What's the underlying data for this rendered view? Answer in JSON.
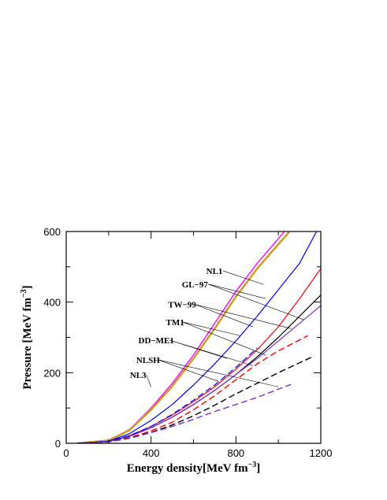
{
  "chart_data": {
    "type": "line",
    "title": "",
    "xlabel": "Energy density[MeV fm",
    "ylabel": "Pressure [MeV fm",
    "unit_superscript": "−3",
    "unit_close": "]",
    "xlim": [
      0,
      1200
    ],
    "ylim": [
      0,
      600
    ],
    "xticks": [
      0,
      400,
      800,
      1200
    ],
    "yticks": [
      0,
      200,
      400,
      600
    ],
    "minor_step": 200,
    "grid": false,
    "legend": "none",
    "series": [
      {
        "name": "NL1",
        "color": "#ff00ff",
        "width": 1.4,
        "dash": false,
        "x": [
          50,
          200,
          300,
          400,
          500,
          600,
          700,
          800,
          900,
          1050
        ],
        "y": [
          0,
          8,
          40,
          100,
          170,
          250,
          340,
          430,
          510,
          615
        ]
      },
      {
        "name": "GL-97",
        "color": "#c8a020",
        "width": 2.5,
        "dash": false,
        "x": [
          50,
          200,
          300,
          400,
          500,
          600,
          700,
          800,
          900,
          1060
        ],
        "y": [
          0,
          8,
          38,
          95,
          162,
          240,
          325,
          415,
          495,
          605
        ]
      },
      {
        "name": "TW-99",
        "color": "#0000ff",
        "width": 1.2,
        "dash": false,
        "x": [
          50,
          200,
          300,
          400,
          500,
          600,
          700,
          800,
          900,
          1000,
          1100,
          1180
        ],
        "y": [
          0,
          6,
          28,
          65,
          110,
          165,
          225,
          290,
          360,
          435,
          510,
          600
        ]
      },
      {
        "name": "TM1",
        "color": "#ff0000",
        "width": 1.2,
        "dash": false,
        "x": [
          50,
          200,
          300,
          400,
          500,
          600,
          700,
          800,
          900,
          1000,
          1100,
          1200
        ],
        "y": [
          0,
          5,
          22,
          48,
          80,
          118,
          160,
          210,
          265,
          330,
          410,
          495
        ]
      },
      {
        "name": "DD-ME1",
        "color": "#000000",
        "width": 1.2,
        "dash": false,
        "x": [
          50,
          200,
          300,
          400,
          500,
          600,
          700,
          800,
          900,
          1000,
          1100,
          1200
        ],
        "y": [
          0,
          5,
          20,
          44,
          74,
          110,
          150,
          195,
          245,
          300,
          360,
          420
        ]
      },
      {
        "name": "NLSH",
        "color": "#7b30d8",
        "width": 1.2,
        "dash": false,
        "x": [
          50,
          200,
          300,
          400,
          500,
          600,
          700,
          800,
          900,
          1000,
          1100,
          1200
        ],
        "y": [
          0,
          5,
          20,
          44,
          74,
          110,
          150,
          195,
          240,
          290,
          340,
          390
        ]
      },
      {
        "name": "",
        "color": "#0000ff",
        "width": 1.2,
        "dash": true,
        "x": [
          50,
          200,
          300,
          400,
          500,
          600,
          700,
          800,
          900
        ],
        "y": [
          0,
          6,
          22,
          48,
          82,
          122,
          165,
          215,
          270
        ]
      },
      {
        "name": "",
        "color": "#ff0000",
        "width": 1.4,
        "dash": true,
        "x": [
          50,
          200,
          300,
          400,
          500,
          600,
          700,
          800,
          900,
          1000,
          1140
        ],
        "y": [
          0,
          4,
          16,
          35,
          60,
          95,
          135,
          180,
          225,
          262,
          305
        ]
      },
      {
        "name": "",
        "color": "#000000",
        "width": 1.4,
        "dash": true,
        "x": [
          50,
          200,
          300,
          400,
          500,
          600,
          700,
          800,
          900,
          1000,
          1160
        ],
        "y": [
          0,
          4,
          15,
          31,
          52,
          78,
          108,
          140,
          170,
          200,
          245
        ]
      },
      {
        "name": "",
        "color": "#7b30d8",
        "width": 1.4,
        "dash": true,
        "x": [
          50,
          200,
          300,
          400,
          500,
          600,
          700,
          800,
          900,
          1060
        ],
        "y": [
          0,
          4,
          14,
          30,
          48,
          68,
          90,
          110,
          130,
          167
        ]
      }
    ],
    "annotations": [
      {
        "text": "NL1",
        "x": 660,
        "y": 480,
        "lines": [
          {
            "x": 930,
            "y": 450
          }
        ]
      },
      {
        "text": "GL−97",
        "x": 545,
        "y": 442,
        "lines": [
          {
            "x": 940,
            "y": 410
          },
          {
            "x": 1120,
            "y": 350
          }
        ]
      },
      {
        "text": "TW−99",
        "x": 480,
        "y": 385,
        "lines": [
          {
            "x": 880,
            "y": 330
          },
          {
            "x": 1060,
            "y": 325
          }
        ]
      },
      {
        "text": "TM1",
        "x": 470,
        "y": 335,
        "lines": [
          {
            "x": 820,
            "y": 305
          },
          {
            "x": 940,
            "y": 250
          }
        ]
      },
      {
        "text": "DD−ME1",
        "x": 340,
        "y": 283,
        "lines": [
          {
            "x": 760,
            "y": 240
          },
          {
            "x": 880,
            "y": 220
          }
        ]
      },
      {
        "text": "NLSH",
        "x": 330,
        "y": 228,
        "lines": [
          {
            "x": 720,
            "y": 175
          },
          {
            "x": 1000,
            "y": 160
          }
        ]
      },
      {
        "text": "NL3",
        "x": 300,
        "y": 185,
        "lines": [
          {
            "x": 400,
            "y": 160
          }
        ]
      }
    ]
  }
}
